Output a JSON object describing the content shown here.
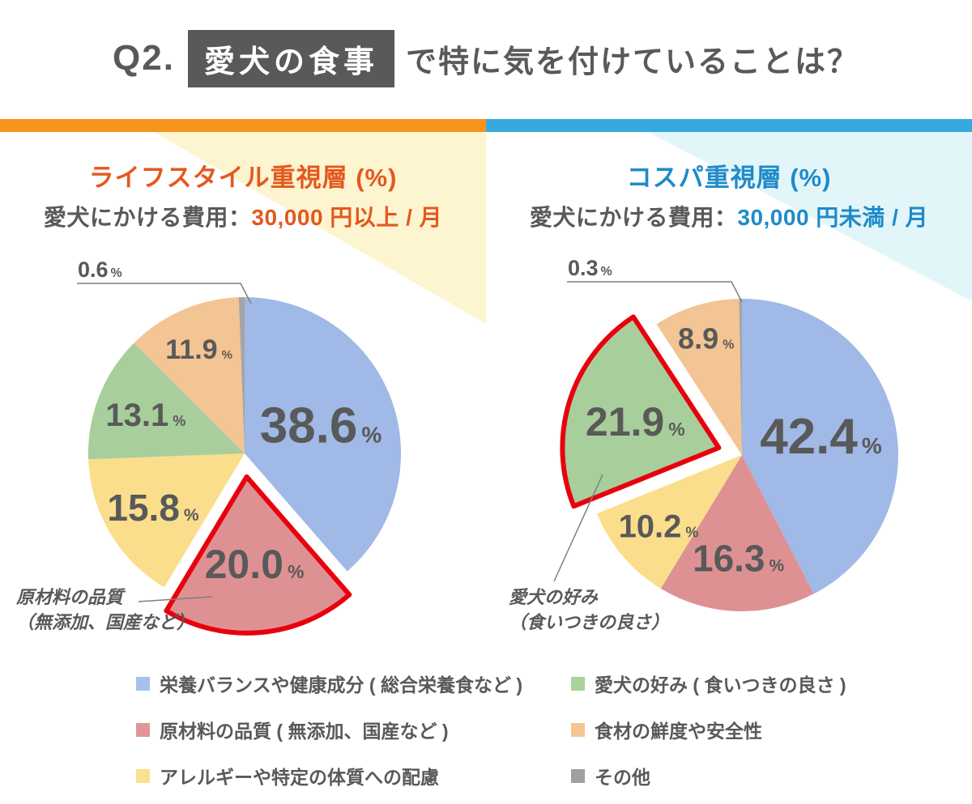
{
  "header": {
    "prefix": "Q2.",
    "highlight": "愛犬の食事",
    "suffix": "で特に気を付けていることは？"
  },
  "theme": {
    "left_bar": "#F7941D",
    "right_bar": "#36A9DE",
    "left_accent": "#E4581E",
    "right_accent": "#1E8BC8",
    "left_bg_triangle": "#FDF4D0",
    "right_bg_triangle": "#E2F6FA",
    "text": "#595959",
    "title_box_bg": "#595959",
    "highlight_stroke": "#E8000D",
    "leader_line": "#7F7F7F"
  },
  "panels": [
    {
      "title": "ライフスタイル重視層 (%)",
      "subtitle_prefix": "愛犬にかける費用：",
      "subtitle_value": "30,000 円以上 / 月"
    },
    {
      "title": "コスパ重視層 (%)",
      "subtitle_prefix": "愛犬にかける費用：",
      "subtitle_value": "30,000 円未満 / 月"
    }
  ],
  "chart_data": [
    {
      "type": "pie",
      "title": "ライフスタイル重視層 (%)",
      "unit": "%",
      "start_angle_deg": 0,
      "direction": "clockwise",
      "slices": [
        {
          "label": "栄養バランスや健康成分 ( 総合栄養食など )",
          "value": 38.6,
          "color": "#A0B9E6"
        },
        {
          "label": "原材料の品質 ( 無添加、国産など )",
          "value": 20.0,
          "color": "#DE9193",
          "exploded": true,
          "highlighted": true
        },
        {
          "label": "アレルギーや特定の体質への配慮",
          "value": 15.8,
          "color": "#FADE8B"
        },
        {
          "label": "愛犬の好み ( 食いつきの良さ )",
          "value": 13.1,
          "color": "#A8CE9B"
        },
        {
          "label": "食材の鮮度や安全性",
          "value": 11.9,
          "color": "#F3C494"
        },
        {
          "label": "その他",
          "value": 0.6,
          "color": "#A5A5A5",
          "label_outside": true
        }
      ],
      "callout": {
        "lines": [
          "原材料の品質",
          "（無添加、国産など）"
        ],
        "target": "原材料の品質 ( 無添加、国産など )"
      }
    },
    {
      "type": "pie",
      "title": "コスパ重視層 (%)",
      "unit": "%",
      "start_angle_deg": 0,
      "direction": "clockwise",
      "slices": [
        {
          "label": "栄養バランスや健康成分 ( 総合栄養食など )",
          "value": 42.4,
          "color": "#A0B9E6"
        },
        {
          "label": "原材料の品質 ( 無添加、国産など )",
          "value": 16.3,
          "color": "#DE9193"
        },
        {
          "label": "アレルギーや特定の体質への配慮",
          "value": 10.2,
          "color": "#FADE8B"
        },
        {
          "label": "愛犬の好み ( 食いつきの良さ )",
          "value": 21.9,
          "color": "#A8CE9B",
          "exploded": true,
          "highlighted": true
        },
        {
          "label": "食材の鮮度や安全性",
          "value": 8.9,
          "color": "#F3C494"
        },
        {
          "label": "その他",
          "value": 0.3,
          "color": "#A5A5A5",
          "label_outside": true
        }
      ],
      "callout": {
        "lines": [
          "愛犬の好み",
          "（食いつきの良さ）"
        ],
        "target": "愛犬の好み ( 食いつきの良さ )"
      }
    }
  ],
  "legend": {
    "columns": [
      [
        {
          "label": "栄養バランスや健康成分 ( 総合栄養食など )",
          "color": "#A6C1EC"
        },
        {
          "label": "原材料の品質 ( 無添加、国産など )",
          "color": "#E19598"
        },
        {
          "label": "アレルギーや特定の体質への配慮",
          "color": "#FAE18F"
        }
      ],
      [
        {
          "label": "愛犬の好み ( 食いつきの良さ )",
          "color": "#ABD29B"
        },
        {
          "label": "食材の鮮度や安全性",
          "color": "#F5C691"
        },
        {
          "label": "その他",
          "color": "#A0A0A0"
        }
      ]
    ]
  }
}
